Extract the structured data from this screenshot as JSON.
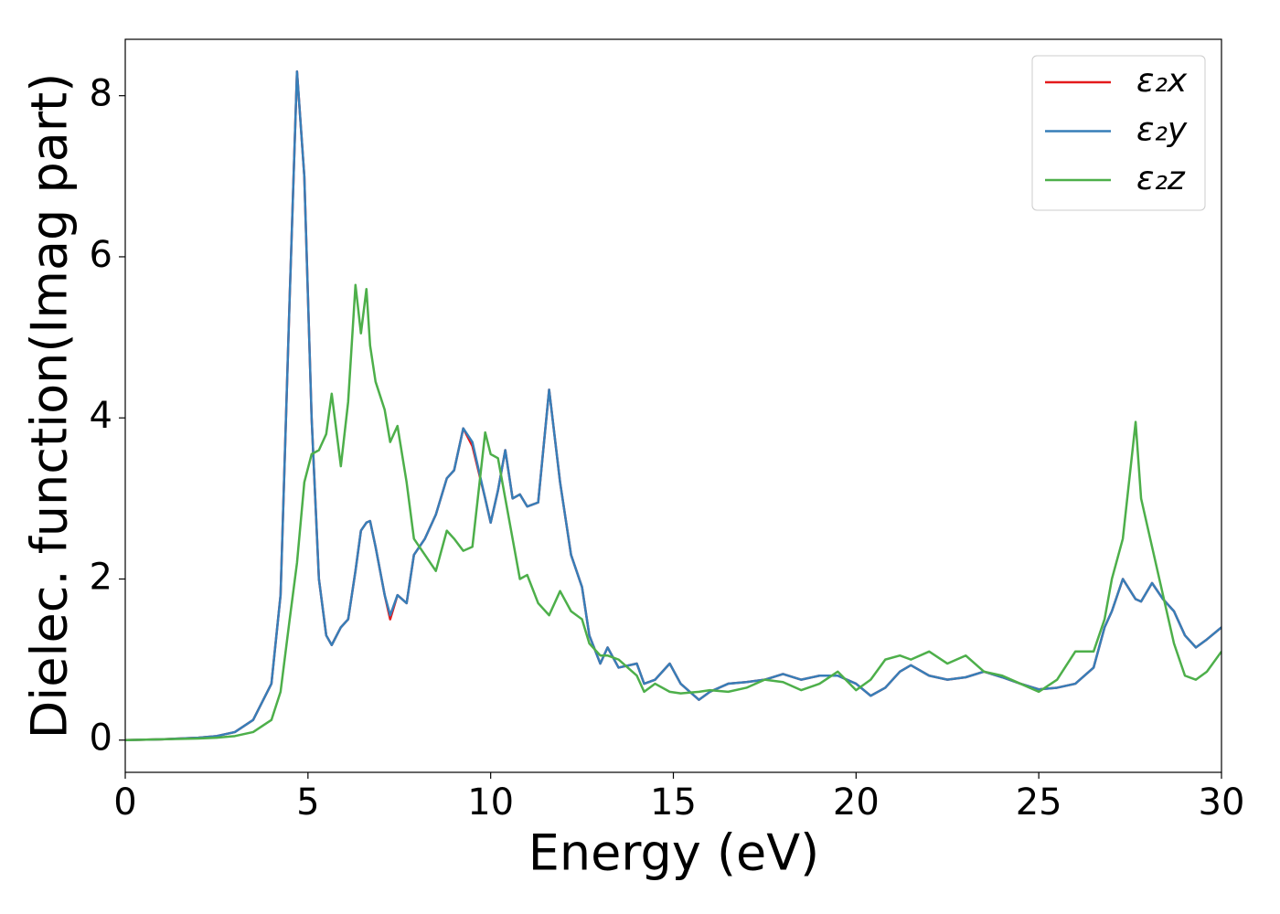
{
  "chart_data": {
    "type": "line",
    "xlabel": "Energy (eV)",
    "ylabel": "Dielec. function(Imag part)",
    "xlim": [
      0,
      30
    ],
    "ylim": [
      -0.4,
      8.7
    ],
    "xticks": [
      0,
      5,
      10,
      15,
      20,
      25,
      30
    ],
    "yticks": [
      0,
      2,
      4,
      6,
      8
    ],
    "grid": false,
    "legend": "upper right",
    "x": [
      0,
      1,
      2,
      2.5,
      3,
      3.5,
      4,
      4.25,
      4.5,
      4.7,
      4.9,
      5.1,
      5.3,
      5.5,
      5.65,
      5.9,
      6.1,
      6.3,
      6.45,
      6.6,
      6.7,
      6.85,
      7.1,
      7.25,
      7.45,
      7.7,
      7.9,
      8.2,
      8.5,
      8.8,
      9.0,
      9.25,
      9.5,
      9.85,
      10.0,
      10.2,
      10.4,
      10.6,
      10.8,
      11.0,
      11.3,
      11.6,
      11.9,
      12.2,
      12.5,
      12.7,
      13.0,
      13.2,
      13.5,
      14.0,
      14.2,
      14.5,
      14.9,
      15.2,
      15.7,
      16.0,
      16.5,
      17.0,
      17.5,
      18.0,
      18.5,
      19.0,
      19.5,
      20.0,
      20.4,
      20.8,
      21.2,
      21.5,
      22.0,
      22.5,
      23.0,
      23.5,
      24.0,
      24.5,
      25.0,
      25.5,
      26.0,
      26.5,
      26.8,
      27.0,
      27.3,
      27.65,
      27.8,
      28.1,
      28.4,
      28.7,
      29.0,
      29.3,
      29.6,
      30
    ],
    "series": [
      {
        "name": "ε₂x",
        "color": "#e41a1c",
        "values": [
          0,
          0.01,
          0.03,
          0.05,
          0.1,
          0.25,
          0.7,
          1.8,
          5.5,
          8.3,
          7.0,
          4.0,
          2.0,
          1.3,
          1.18,
          1.4,
          1.5,
          2.1,
          2.6,
          2.7,
          2.72,
          2.4,
          1.8,
          1.5,
          1.8,
          1.7,
          2.3,
          2.5,
          2.8,
          3.25,
          3.35,
          3.87,
          3.65,
          3.0,
          2.7,
          3.1,
          3.6,
          3.0,
          3.05,
          2.9,
          2.95,
          4.35,
          3.2,
          2.3,
          1.9,
          1.3,
          0.95,
          1.15,
          0.9,
          0.95,
          0.7,
          0.75,
          0.95,
          0.7,
          0.5,
          0.6,
          0.7,
          0.72,
          0.75,
          0.82,
          0.75,
          0.8,
          0.8,
          0.7,
          0.55,
          0.65,
          0.85,
          0.93,
          0.8,
          0.75,
          0.78,
          0.85,
          0.78,
          0.7,
          0.63,
          0.65,
          0.7,
          0.9,
          1.4,
          1.6,
          2.0,
          1.75,
          1.72,
          1.95,
          1.75,
          1.6,
          1.3,
          1.15,
          1.25,
          1.4
        ]
      },
      {
        "name": "ε₂y",
        "color": "#377eb8",
        "values": [
          0,
          0.01,
          0.03,
          0.05,
          0.1,
          0.25,
          0.7,
          1.8,
          5.5,
          8.3,
          7.0,
          4.0,
          2.0,
          1.3,
          1.18,
          1.4,
          1.5,
          2.1,
          2.6,
          2.7,
          2.72,
          2.4,
          1.8,
          1.55,
          1.8,
          1.7,
          2.3,
          2.5,
          2.8,
          3.25,
          3.35,
          3.87,
          3.7,
          3.0,
          2.7,
          3.1,
          3.6,
          3.0,
          3.05,
          2.9,
          2.95,
          4.35,
          3.2,
          2.3,
          1.9,
          1.3,
          0.95,
          1.15,
          0.9,
          0.95,
          0.7,
          0.75,
          0.95,
          0.7,
          0.5,
          0.6,
          0.7,
          0.72,
          0.75,
          0.82,
          0.75,
          0.8,
          0.8,
          0.7,
          0.55,
          0.65,
          0.85,
          0.93,
          0.8,
          0.75,
          0.78,
          0.85,
          0.78,
          0.7,
          0.63,
          0.65,
          0.7,
          0.9,
          1.4,
          1.6,
          2.0,
          1.75,
          1.72,
          1.95,
          1.75,
          1.6,
          1.3,
          1.15,
          1.25,
          1.4
        ]
      },
      {
        "name": "ε₂z",
        "color": "#4daf4a",
        "values": [
          0,
          0.01,
          0.02,
          0.03,
          0.05,
          0.1,
          0.25,
          0.6,
          1.5,
          2.2,
          3.2,
          3.55,
          3.6,
          3.8,
          4.3,
          3.4,
          4.2,
          5.65,
          5.05,
          5.6,
          4.9,
          4.45,
          4.1,
          3.7,
          3.9,
          3.2,
          2.5,
          2.3,
          2.1,
          2.6,
          2.5,
          2.35,
          2.4,
          3.82,
          3.55,
          3.5,
          3.0,
          2.5,
          2.0,
          2.05,
          1.7,
          1.55,
          1.85,
          1.6,
          1.5,
          1.2,
          1.05,
          1.05,
          1.0,
          0.8,
          0.6,
          0.7,
          0.6,
          0.58,
          0.6,
          0.62,
          0.6,
          0.65,
          0.75,
          0.72,
          0.62,
          0.7,
          0.85,
          0.62,
          0.75,
          1.0,
          1.05,
          1.0,
          1.1,
          0.95,
          1.05,
          0.85,
          0.8,
          0.7,
          0.6,
          0.75,
          1.1,
          1.1,
          1.5,
          2.0,
          2.5,
          3.95,
          3.0,
          2.4,
          1.8,
          1.2,
          0.8,
          0.75,
          0.85,
          1.1
        ]
      }
    ]
  }
}
